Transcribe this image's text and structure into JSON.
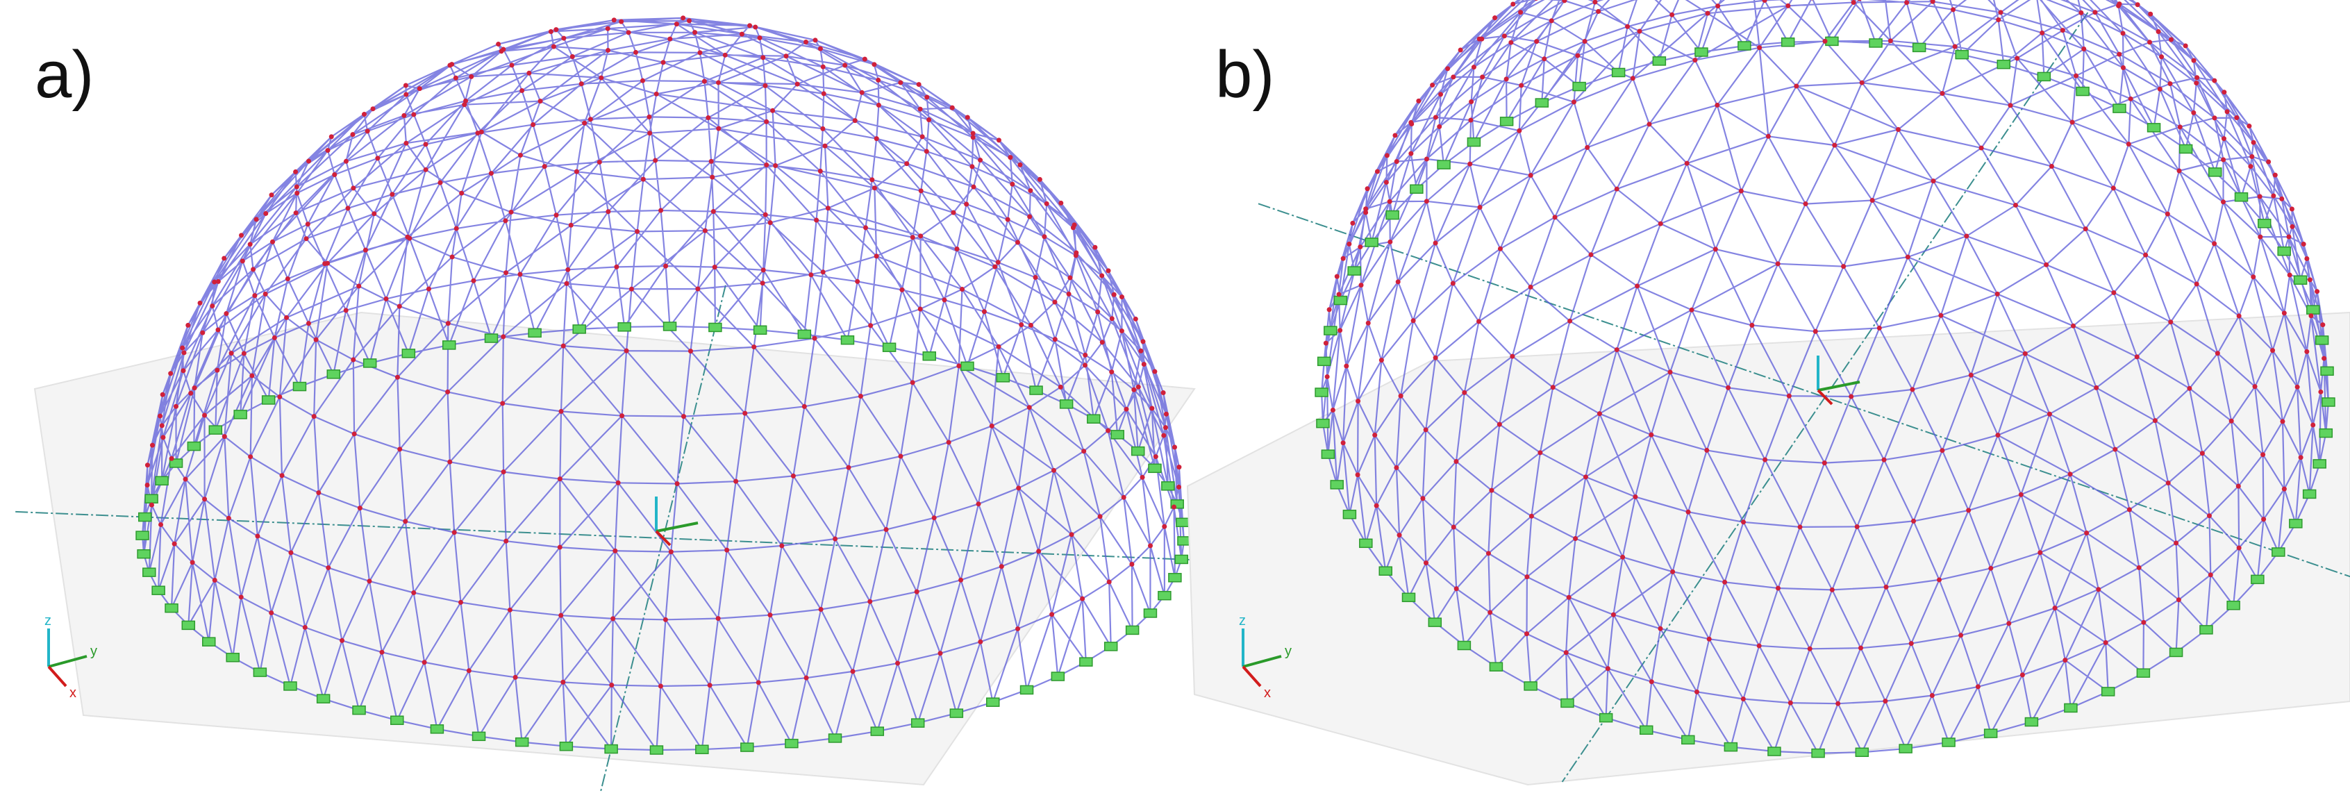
{
  "panels": [
    {
      "label": "a)",
      "axes": {
        "x": "x",
        "y": "y",
        "z": "z"
      }
    },
    {
      "label": "b)",
      "axes": {
        "x": "x",
        "y": "y",
        "z": "z"
      }
    }
  ]
}
